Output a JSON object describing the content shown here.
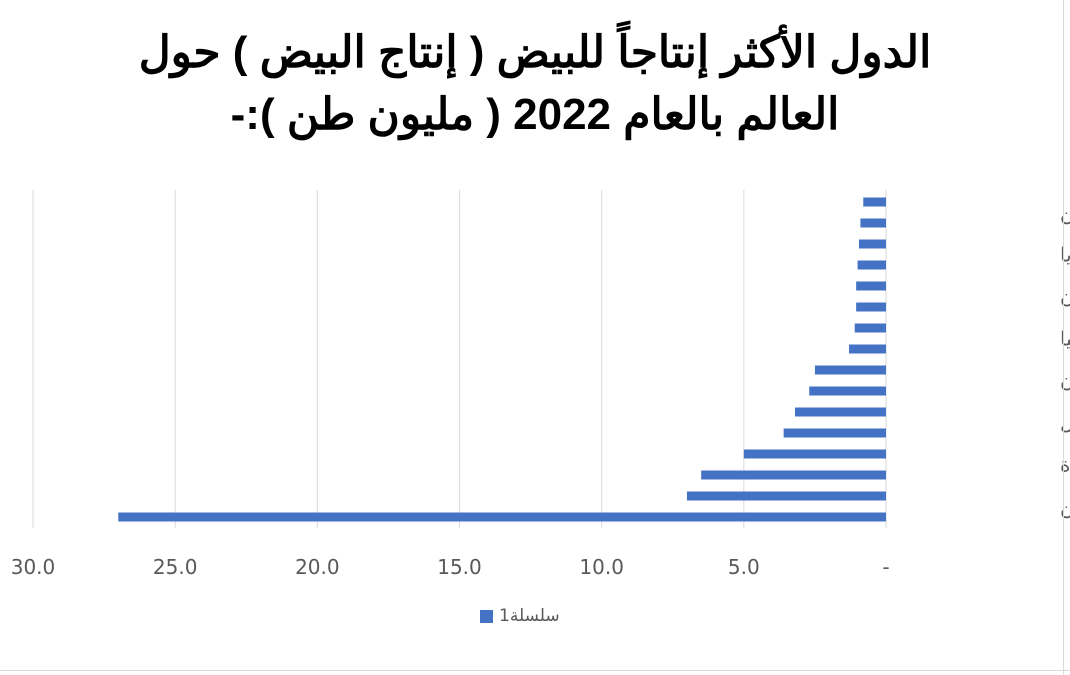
{
  "title_lines": [
    "الدول الأكثر إنتاجاً للبيض ( إنتاج البيض ) حول",
    "العالم بالعام 2022 ( مليون طن ):-"
  ],
  "chart_data": {
    "type": "bar",
    "orientation": "horizontal",
    "reversed_x_axis": true,
    "category_labels": [
      "الأرجنتين",
      "ماليزيا",
      "باكستان",
      "تركيا",
      "اليابان",
      "البرازيل",
      "الولايات المتحدة",
      "الصِين"
    ],
    "categories": [
      "",
      "الأرجنتين",
      "",
      "ماليزيا",
      "",
      "باكستان",
      "",
      "تركيا",
      "",
      "اليابان",
      "",
      "البرازيل",
      "",
      "الولايات المتحدة",
      "",
      "الصِين"
    ],
    "series": [
      {
        "name": "سلسلة1",
        "color": "#4472C4",
        "values": [
          0.8,
          0.9,
          0.95,
          1.0,
          1.05,
          1.05,
          1.1,
          1.3,
          2.5,
          2.7,
          3.2,
          3.6,
          5.0,
          6.5,
          7.0,
          27.0
        ]
      }
    ],
    "xlim": [
      0,
      30
    ],
    "x_ticks": [
      0,
      5,
      10,
      15,
      20,
      25,
      30
    ],
    "x_tick_labels": [
      "-",
      "5.0",
      "10.0",
      "15.0",
      "20.0",
      "25.0",
      "30.0"
    ],
    "grid": true,
    "legend_position": "bottom"
  }
}
